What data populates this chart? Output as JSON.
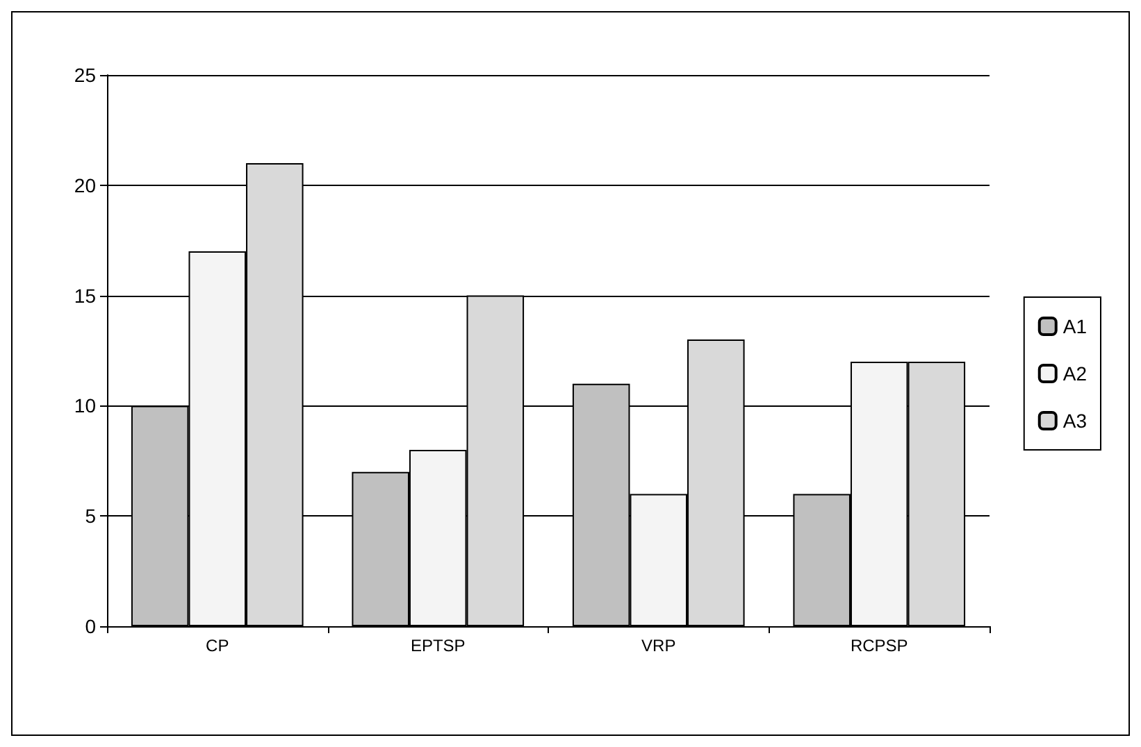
{
  "chart_data": {
    "type": "bar",
    "categories": [
      "CP",
      "EPTSP",
      "VRP",
      "RCPSP"
    ],
    "series": [
      {
        "name": "A1",
        "color": "#c0c0c0",
        "values": [
          10,
          7,
          11,
          6
        ]
      },
      {
        "name": "A2",
        "color": "#f4f4f4",
        "values": [
          17,
          8,
          6,
          12
        ]
      },
      {
        "name": "A3",
        "color": "#d9d9d9",
        "values": [
          21,
          15,
          13,
          12
        ]
      }
    ],
    "ylim": [
      0,
      25
    ],
    "yticks": [
      0,
      5,
      10,
      15,
      20,
      25
    ],
    "grid": "y",
    "legend": "right"
  }
}
